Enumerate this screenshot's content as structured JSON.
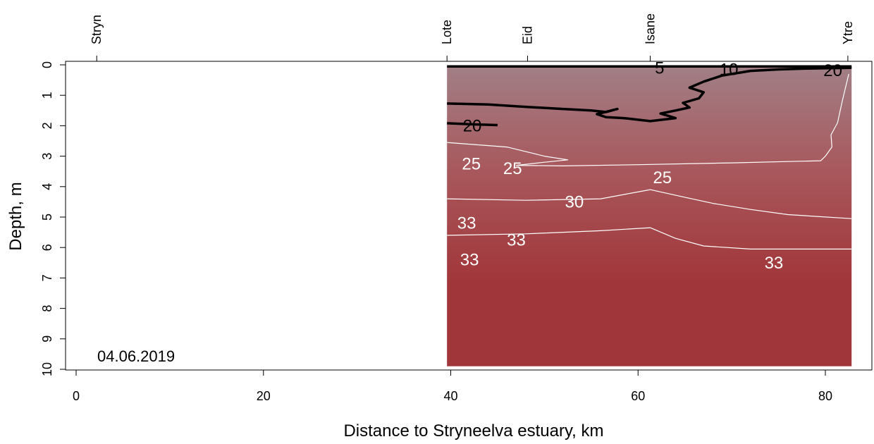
{
  "chart_data": {
    "type": "heatmap",
    "title": "",
    "xlabel": "Distance to Stryneelva estuary, km",
    "ylabel": "Depth, m",
    "xlim": [
      0,
      85
    ],
    "ylim": [
      10,
      0
    ],
    "x_ticks": [
      0,
      20,
      40,
      60,
      80
    ],
    "y_ticks": [
      0,
      1,
      2,
      3,
      4,
      5,
      6,
      7,
      8,
      9,
      10
    ],
    "stations": [
      {
        "name": "Stryn",
        "x": 2.2
      },
      {
        "name": "Lote",
        "x": 39.6
      },
      {
        "name": "Eid",
        "x": 48.2
      },
      {
        "name": "Isane",
        "x": 61.3
      },
      {
        "name": "Ytre",
        "x": 82.4
      }
    ],
    "date_label": "04.06.2019",
    "data_extent": {
      "x": [
        39.6,
        82.8
      ],
      "depth": [
        0,
        9.9
      ]
    },
    "colors": {
      "surface": "#a17f86",
      "mid": "#a8585c",
      "deep": "#a1363a",
      "contour_salinity_low": "#000000",
      "contour_salinity_high": "#ffffff"
    },
    "contours": [
      {
        "level": 5,
        "label": "5",
        "color": "#000000",
        "labels_at": [
          {
            "x": 62.3,
            "depth": 0.1
          }
        ],
        "path": [
          [
            39.6,
            0.05
          ],
          [
            82.8,
            0.05
          ]
        ]
      },
      {
        "level": 10,
        "label": "10",
        "color": "#000000",
        "labels_at": [
          {
            "x": 69.7,
            "depth": 0.15
          }
        ],
        "path": [
          [
            39.6,
            1.27
          ],
          [
            44,
            1.3
          ],
          [
            48,
            1.38
          ],
          [
            52,
            1.45
          ],
          [
            55,
            1.5
          ],
          [
            56.6,
            1.55
          ],
          [
            57.8,
            1.45
          ],
          [
            55.6,
            1.62
          ],
          [
            56.6,
            1.72
          ],
          [
            58.5,
            1.75
          ],
          [
            61.3,
            1.85
          ],
          [
            64,
            1.75
          ],
          [
            62.4,
            1.6
          ],
          [
            64,
            1.5
          ],
          [
            65.5,
            1.4
          ],
          [
            64.8,
            1.25
          ],
          [
            66.5,
            1.1
          ],
          [
            67,
            0.9
          ],
          [
            65.5,
            0.75
          ],
          [
            67,
            0.55
          ],
          [
            69,
            0.35
          ],
          [
            72,
            0.2
          ],
          [
            75,
            0.15
          ],
          [
            78,
            0.12
          ],
          [
            82.8,
            0.1
          ]
        ]
      },
      {
        "level": 20,
        "label": "20",
        "color": "#000000",
        "labels_at": [
          {
            "x": 42.3,
            "depth": 2.0
          },
          {
            "x": 80.8,
            "depth": 0.18
          }
        ],
        "path": [
          [
            39.6,
            1.92
          ],
          [
            42,
            1.95
          ],
          [
            45,
            1.98
          ]
        ]
      },
      {
        "level": 25,
        "label": "25",
        "color": "#ffffff",
        "labels_at": [
          {
            "x": 42.2,
            "depth": 3.25
          },
          {
            "x": 46.6,
            "depth": 3.4
          },
          {
            "x": 62.6,
            "depth": 3.7
          }
        ],
        "path": [
          [
            39.6,
            2.55
          ],
          [
            46,
            2.7
          ],
          [
            48,
            2.85
          ],
          [
            50,
            3.0
          ],
          [
            52.5,
            3.12
          ],
          [
            50,
            3.2
          ],
          [
            47,
            3.3
          ],
          [
            52,
            3.32
          ],
          [
            60,
            3.28
          ],
          [
            70,
            3.22
          ],
          [
            79.5,
            3.15
          ],
          [
            80,
            3.0
          ],
          [
            80.7,
            2.7
          ],
          [
            80.6,
            2.3
          ],
          [
            81.3,
            1.9
          ],
          [
            81.8,
            1.2
          ],
          [
            82.5,
            0.3
          ]
        ]
      },
      {
        "level": 30,
        "label": "30",
        "color": "#ffffff",
        "labels_at": [
          {
            "x": 53.2,
            "depth": 4.5
          }
        ],
        "path": [
          [
            39.6,
            4.4
          ],
          [
            48,
            4.45
          ],
          [
            56,
            4.4
          ],
          [
            61.3,
            4.1
          ],
          [
            65,
            4.35
          ],
          [
            68,
            4.55
          ],
          [
            72,
            4.75
          ],
          [
            76,
            4.92
          ],
          [
            82.8,
            5.05
          ]
        ]
      },
      {
        "level": 33,
        "label": "33",
        "color": "#ffffff",
        "labels_at": [
          {
            "x": 41.7,
            "depth": 5.2
          },
          {
            "x": 47,
            "depth": 5.75
          },
          {
            "x": 42,
            "depth": 6.4
          },
          {
            "x": 74.5,
            "depth": 6.5
          }
        ],
        "path": [
          [
            39.6,
            5.6
          ],
          [
            48,
            5.55
          ],
          [
            56,
            5.45
          ],
          [
            61.3,
            5.35
          ],
          [
            64,
            5.7
          ],
          [
            67,
            5.95
          ],
          [
            72,
            6.05
          ],
          [
            82.8,
            6.05
          ]
        ]
      }
    ]
  }
}
